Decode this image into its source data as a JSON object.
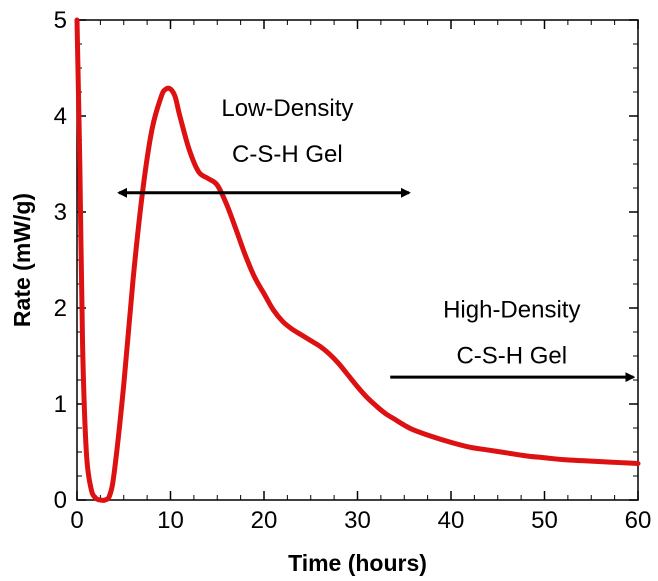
{
  "chart_data": {
    "type": "line",
    "title": "",
    "xlabel": "Time (hours)",
    "ylabel": "Rate (mW/g)",
    "xlim": [
      0,
      60
    ],
    "ylim": [
      0,
      5
    ],
    "xticks": [
      0,
      10,
      20,
      30,
      40,
      50,
      60
    ],
    "yticks": [
      0,
      1,
      2,
      3,
      4,
      5
    ],
    "grid": false,
    "legend": "none",
    "series": [
      {
        "color": "#dd1111",
        "x": [
          0,
          0.3,
          0.6,
          1.0,
          1.5,
          2.0,
          2.5,
          3.0,
          3.5,
          4.0,
          5.0,
          6.0,
          7.0,
          8.0,
          9.0,
          9.5,
          10.0,
          10.5,
          11.0,
          12.0,
          13.0,
          14.0,
          15.0,
          16.0,
          17.0,
          18.0,
          19.0,
          20.0,
          21.0,
          22.0,
          23.0,
          24.0,
          25.0,
          26.0,
          27.0,
          28.0,
          29.0,
          30.0,
          31.0,
          32.0,
          33.0,
          34.0,
          35.0,
          36.0,
          38.0,
          40.0,
          42.0,
          44.0,
          46.0,
          48.0,
          50.0,
          52.0,
          54.0,
          56.0,
          58.0,
          60.0
        ],
        "y": [
          5.0,
          3.5,
          1.6,
          0.5,
          0.12,
          0.02,
          0.0,
          0.0,
          0.05,
          0.3,
          1.2,
          2.3,
          3.2,
          3.85,
          4.2,
          4.28,
          4.28,
          4.2,
          4.0,
          3.65,
          3.42,
          3.35,
          3.28,
          3.08,
          2.82,
          2.55,
          2.32,
          2.15,
          1.98,
          1.86,
          1.78,
          1.72,
          1.66,
          1.6,
          1.52,
          1.42,
          1.3,
          1.18,
          1.07,
          0.98,
          0.9,
          0.84,
          0.78,
          0.73,
          0.66,
          0.6,
          0.55,
          0.52,
          0.49,
          0.46,
          0.44,
          0.42,
          0.41,
          0.4,
          0.39,
          0.38
        ]
      }
    ],
    "annotations": [
      {
        "line1": "Low-Density",
        "line2": "C-S-H Gel",
        "arrow": "double",
        "x_from": 4.5,
        "x_to": 35.5,
        "y": 3.2,
        "text_x": 22.5,
        "text_y1": 4.0,
        "text_y2": 3.52
      },
      {
        "line1": "High-Density",
        "line2": "C-S-H Gel",
        "arrow": "right",
        "x_from": 33.5,
        "x_to": 59.5,
        "y": 1.28,
        "text_x": 46.5,
        "text_y1": 1.9,
        "text_y2": 1.42
      }
    ]
  }
}
